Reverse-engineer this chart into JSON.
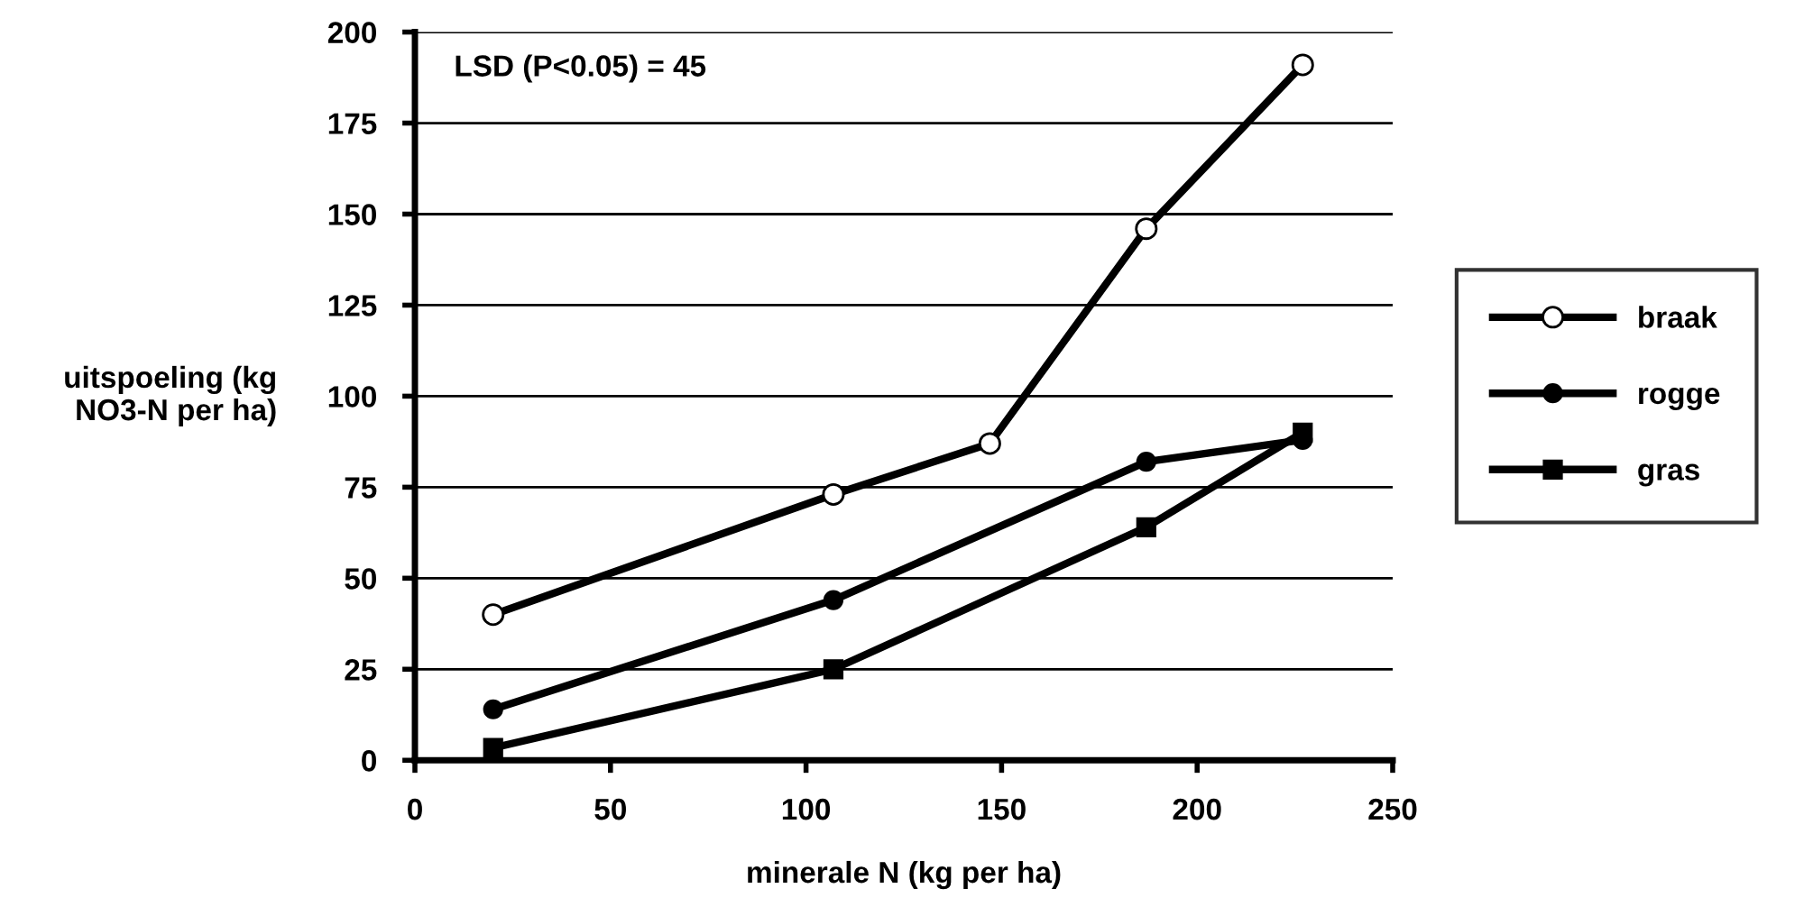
{
  "chart_data": {
    "type": "line",
    "xlabel": "minerale N (kg per ha)",
    "ylabel": "uitspoeling (kg\nNO3-N per ha)",
    "x": [
      20,
      107,
      147,
      187,
      227
    ],
    "series": [
      {
        "name": "braak",
        "color": "#000000",
        "marker": "circle",
        "values": [
          40,
          73,
          87,
          146,
          191
        ]
      },
      {
        "name": "rogge",
        "color": "#000000",
        "marker": "circle",
        "values": [
          14,
          44,
          null,
          82,
          88
        ]
      },
      {
        "name": "gras",
        "color": "#000000",
        "marker": "square",
        "values": [
          3.4,
          25,
          null,
          64,
          90
        ]
      }
    ],
    "xlim": [
      0,
      250
    ],
    "xticks": [
      0,
      50,
      100,
      150,
      200,
      250
    ],
    "ylim": [
      0,
      200
    ],
    "yticks": [
      0,
      25,
      50,
      75,
      100,
      125,
      150,
      175,
      200
    ],
    "grid": "y",
    "legend": "right",
    "line_style": "solid",
    "annotations": [
      "LSD (P<0.05) = 45"
    ]
  }
}
